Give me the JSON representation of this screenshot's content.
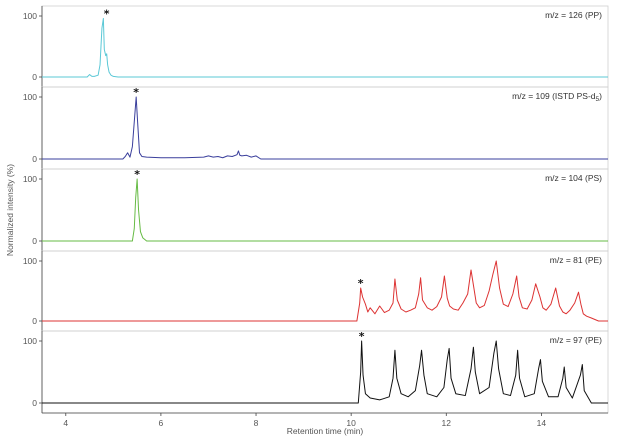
{
  "chart_data": {
    "type": "line",
    "xlabel": "Retention time (min)",
    "ylabel": "Normalized intensity (%)",
    "xlim": [
      3.5,
      15.4
    ],
    "xticks": [
      4,
      6,
      8,
      10,
      12,
      14
    ],
    "ylim": [
      0,
      100
    ],
    "yticks": [
      0,
      100
    ],
    "grid": false,
    "panels": [
      {
        "annotation": "m/z = 126 (PP)",
        "color": "#5bc8d6",
        "marker_x": 4.86,
        "x": [
          3.5,
          4.45,
          4.5,
          4.55,
          4.6,
          4.68,
          4.72,
          4.76,
          4.79,
          4.81,
          4.84,
          4.86,
          4.88,
          4.91,
          4.95,
          5.0,
          5.1,
          15.4
        ],
        "y": [
          0,
          0,
          4,
          1,
          1,
          3,
          20,
          80,
          96,
          45,
          35,
          38,
          20,
          8,
          3,
          1,
          0,
          0
        ]
      },
      {
        "annotation": "m/z = 109 (ISTD PS-d",
        "annotation_sub": "5",
        "annotation_end": ")",
        "color": "#3a3f9c",
        "marker_x": 5.48,
        "x": [
          3.5,
          5.2,
          5.25,
          5.3,
          5.35,
          5.4,
          5.45,
          5.48,
          5.51,
          5.55,
          5.6,
          5.7,
          6.0,
          6.5,
          6.9,
          7.0,
          7.1,
          7.2,
          7.3,
          7.4,
          7.5,
          7.6,
          7.63,
          7.66,
          7.7,
          7.8,
          7.9,
          8.0,
          8.1,
          15.4
        ],
        "y": [
          0,
          0,
          4,
          10,
          3,
          20,
          70,
          100,
          60,
          10,
          4,
          3,
          2,
          2,
          3,
          5,
          3,
          4,
          2,
          5,
          4,
          7,
          13,
          6,
          5,
          6,
          3,
          5,
          0,
          0
        ]
      },
      {
        "annotation": "m/z = 104 (PS)",
        "color": "#66bb44",
        "marker_x": 5.5,
        "x": [
          3.5,
          5.4,
          5.44,
          5.47,
          5.5,
          5.53,
          5.57,
          5.62,
          5.7,
          15.4
        ],
        "y": [
          0,
          0,
          20,
          70,
          100,
          50,
          15,
          5,
          0,
          0
        ]
      },
      {
        "annotation": "m/z = 81 (PE)",
        "color": "#dd3333",
        "marker_x": 10.2,
        "x": [
          3.5,
          10.12,
          10.18,
          10.2,
          10.24,
          10.3,
          10.35,
          10.4,
          10.5,
          10.6,
          10.7,
          10.8,
          10.88,
          10.92,
          10.97,
          11.05,
          11.15,
          11.25,
          11.35,
          11.42,
          11.46,
          11.5,
          11.6,
          11.7,
          11.8,
          11.9,
          11.96,
          12.02,
          12.07,
          12.15,
          12.25,
          12.35,
          12.45,
          12.52,
          12.57,
          12.63,
          12.7,
          12.8,
          12.9,
          12.98,
          13.05,
          13.12,
          13.2,
          13.3,
          13.4,
          13.48,
          13.53,
          13.6,
          13.7,
          13.8,
          13.88,
          13.97,
          14.03,
          14.1,
          14.2,
          14.3,
          14.38,
          14.45,
          14.52,
          14.6,
          14.7,
          14.78,
          14.83,
          14.88,
          14.95,
          15.05,
          15.2,
          15.4
        ],
        "y": [
          0,
          0,
          30,
          55,
          40,
          28,
          15,
          22,
          12,
          25,
          14,
          18,
          30,
          70,
          35,
          20,
          15,
          18,
          22,
          45,
          72,
          35,
          22,
          18,
          24,
          40,
          75,
          38,
          25,
          20,
          18,
          30,
          45,
          85,
          60,
          30,
          22,
          26,
          50,
          78,
          100,
          55,
          28,
          24,
          45,
          75,
          40,
          22,
          20,
          35,
          62,
          40,
          22,
          18,
          28,
          55,
          25,
          15,
          12,
          18,
          30,
          48,
          28,
          12,
          8,
          5,
          0,
          0
        ]
      },
      {
        "annotation": "m/z = 97 (PE)",
        "color": "#111111",
        "marker_x": 10.22,
        "x": [
          3.5,
          10.15,
          10.2,
          10.22,
          10.25,
          10.3,
          10.4,
          10.6,
          10.8,
          10.88,
          10.92,
          10.96,
          11.05,
          11.2,
          11.35,
          11.44,
          11.48,
          11.53,
          11.6,
          11.8,
          11.95,
          12.02,
          12.06,
          12.1,
          12.2,
          12.4,
          12.52,
          12.57,
          12.61,
          12.7,
          12.9,
          13.0,
          13.05,
          13.1,
          13.2,
          13.35,
          13.46,
          13.5,
          13.54,
          13.65,
          13.85,
          13.94,
          13.98,
          14.02,
          14.15,
          14.35,
          14.45,
          14.48,
          14.52,
          14.65,
          14.82,
          14.86,
          14.9,
          15.05,
          15.4
        ],
        "y": [
          0,
          0,
          50,
          100,
          45,
          15,
          8,
          5,
          10,
          40,
          85,
          40,
          15,
          10,
          20,
          60,
          85,
          45,
          15,
          10,
          25,
          70,
          88,
          40,
          15,
          12,
          55,
          90,
          50,
          15,
          25,
          80,
          100,
          55,
          15,
          12,
          45,
          85,
          40,
          10,
          15,
          55,
          70,
          35,
          10,
          10,
          40,
          58,
          25,
          8,
          45,
          62,
          20,
          0,
          0
        ]
      }
    ]
  }
}
